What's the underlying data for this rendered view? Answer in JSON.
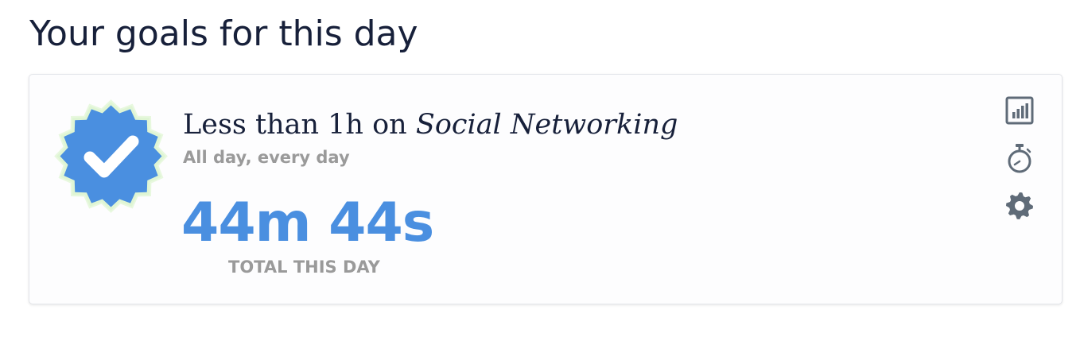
{
  "page": {
    "title": "Your goals for this day"
  },
  "goal": {
    "title_prefix": "Less than 1h on",
    "category": "Social Networking",
    "schedule": "All day, every day",
    "total_value": "44m 44s",
    "total_label": "TOTAL THIS DAY",
    "status": "completed"
  },
  "actions": {
    "stats_icon": "bar-chart-icon",
    "timer_icon": "stopwatch-icon",
    "settings_icon": "gear-icon"
  },
  "colors": {
    "badge_blue": "#4a8fe0",
    "badge_glow": "#dff5d4",
    "accent_value": "#4a8fe0",
    "icon_gray": "#5f6b78"
  }
}
